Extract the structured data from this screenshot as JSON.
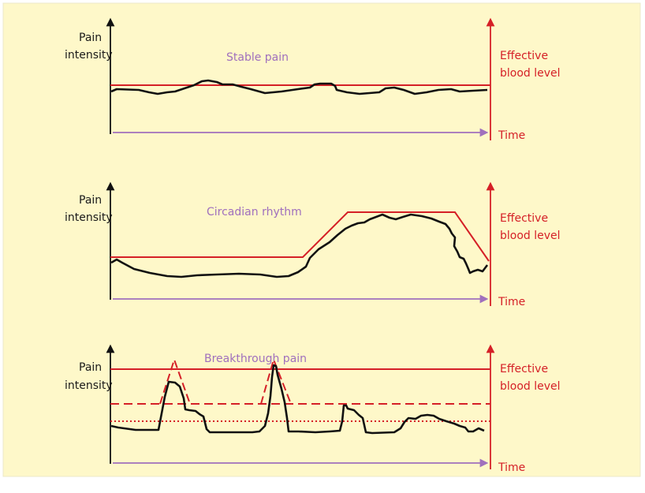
{
  "colors": {
    "background": "#fef8c9",
    "border": "#ece9c9",
    "pain_curve": "#111111",
    "effective_level": "#d52027",
    "time_axis": "#a070bd",
    "title_text": "#a070bd",
    "label_text": "#1a1a1a"
  },
  "panels": [
    {
      "title": "Stable pain",
      "y_label_line1": "Pain",
      "y_label_line2": "intensity",
      "right_label_line1": "Effective",
      "right_label_line2": "blood level",
      "x_label": "Time"
    },
    {
      "title": "Circadian rhythm",
      "y_label_line1": "Pain",
      "y_label_line2": "intensity",
      "right_label_line1": "Effective",
      "right_label_line2": "blood level",
      "x_label": "Time"
    },
    {
      "title": "Breakthrough pain",
      "y_label_line1": "Pain",
      "y_label_line2": "intensity",
      "right_label_line1": "Effective",
      "right_label_line2": "blood level",
      "x_label": "Time"
    }
  ]
}
